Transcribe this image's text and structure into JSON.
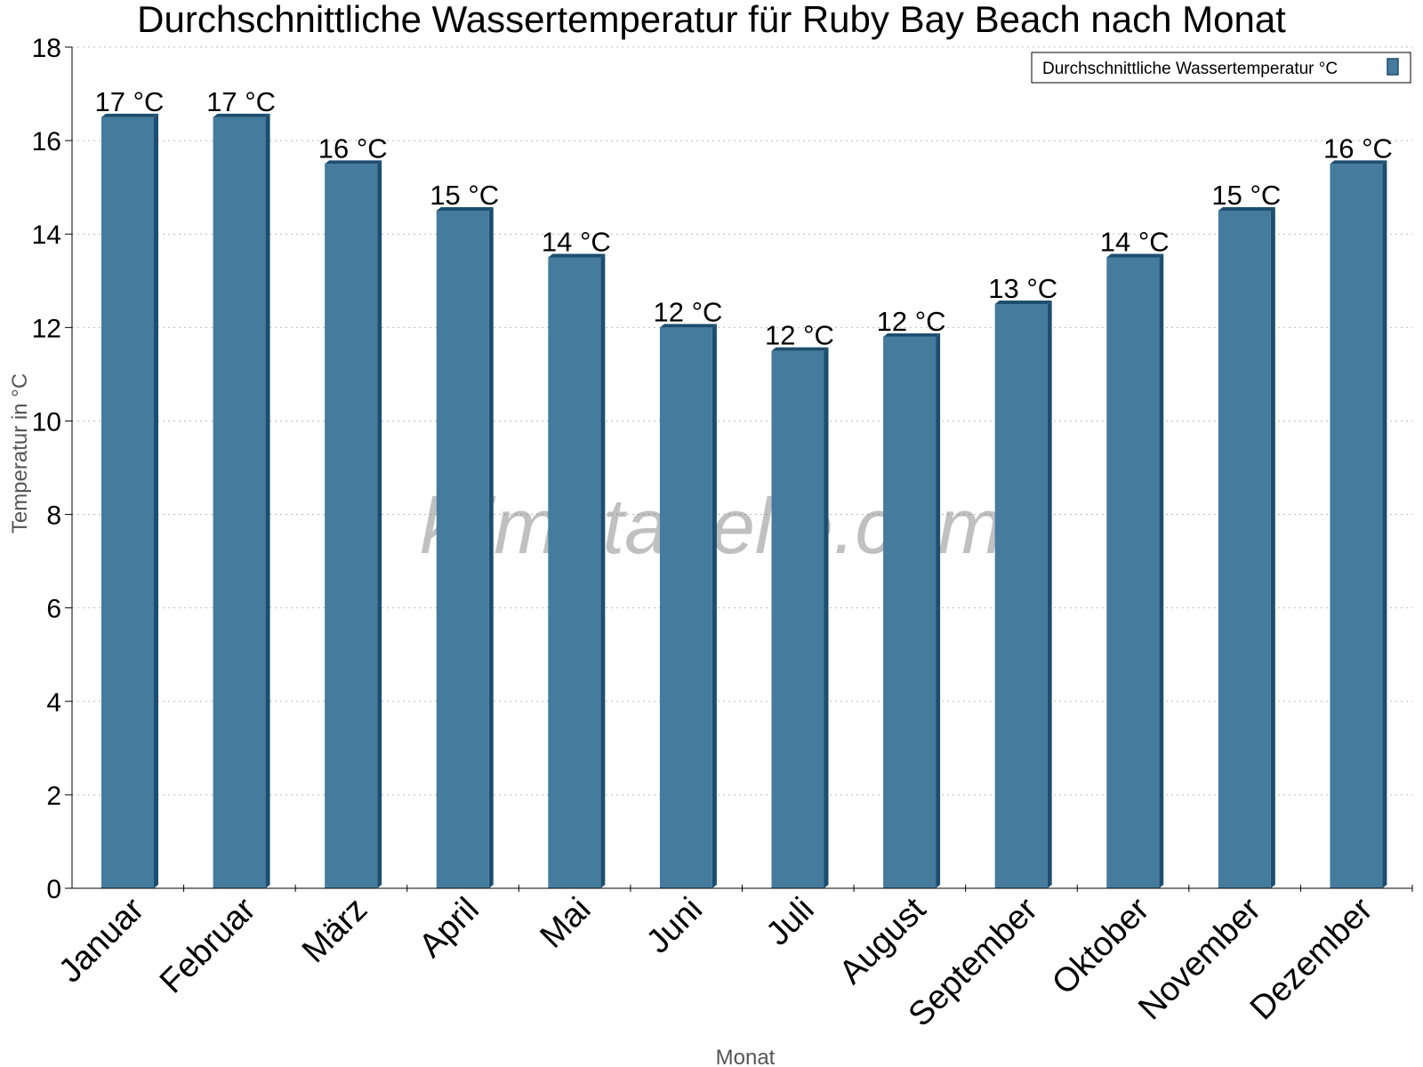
{
  "chart_data": {
    "type": "bar",
    "title": "Durchschnittliche Wassertemperatur für Ruby Bay Beach nach Monat",
    "xlabel": "Monat",
    "ylabel": "Temperatur in °C",
    "categories": [
      "Januar",
      "Februar",
      "März",
      "April",
      "Mai",
      "Juni",
      "Juli",
      "August",
      "September",
      "Oktober",
      "November",
      "Dezember"
    ],
    "series": [
      {
        "name": "Durchschnittliche Wassertemperatur °C",
        "values": [
          16.5,
          16.5,
          15.5,
          14.5,
          13.5,
          12.0,
          11.5,
          11.8,
          12.5,
          13.5,
          14.5,
          15.5
        ],
        "labels": [
          "17 °C",
          "17 °C",
          "16 °C",
          "15 °C",
          "14 °C",
          "12 °C",
          "12 °C",
          "12 °C",
          "13 °C",
          "14 °C",
          "15 °C",
          "16 °C"
        ]
      }
    ],
    "ylim": [
      0,
      18
    ],
    "yticks": [
      0,
      2,
      4,
      6,
      8,
      10,
      12,
      14,
      16,
      18
    ],
    "grid": true,
    "legend_position": "top-right",
    "colors": {
      "bar": "#457b9d",
      "bar_side": "#1d4e6f",
      "grid": "#bbbbbb"
    }
  },
  "watermark": "klimatabelle.com"
}
